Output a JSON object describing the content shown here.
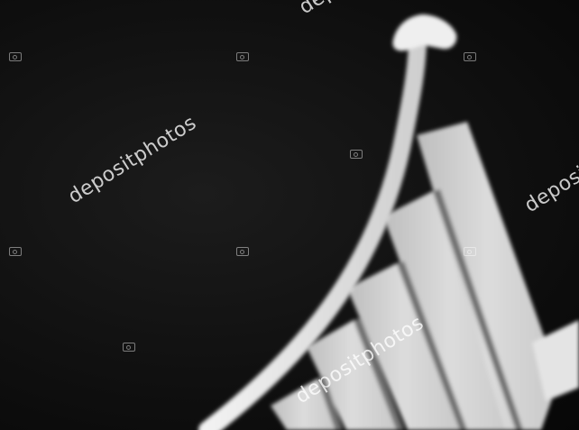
{
  "watermark": {
    "text": "depositphotos"
  },
  "colors": {
    "background": "#0b0b0b",
    "bars": "#d9d9d9",
    "arrow": "#e6e6e6"
  },
  "icons": {
    "watermark_badge": "camera-icon"
  }
}
